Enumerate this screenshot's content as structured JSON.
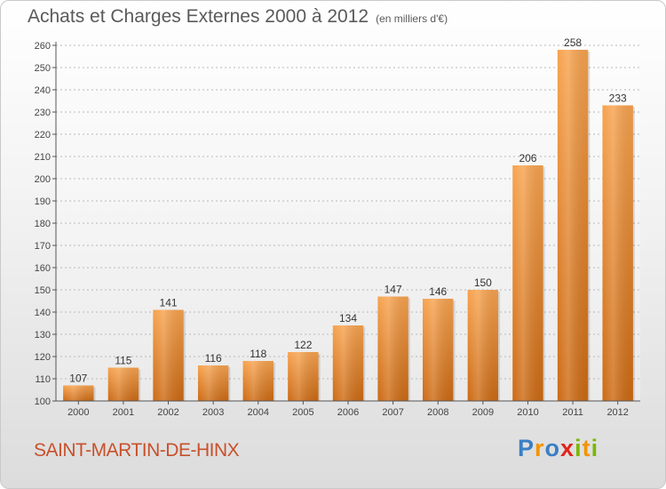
{
  "header": {
    "title": "Achats et Charges Externes 2000 à 2012",
    "unit": "(en milliers d'€)"
  },
  "footer": {
    "commune": "SAINT-MARTIN-DE-HINX",
    "logo": {
      "letters": [
        "P",
        "r",
        "o",
        "x",
        "i",
        "t",
        "i"
      ],
      "colors": [
        "#3b7fc4",
        "#f29400",
        "#3b7fc4",
        "#e2231a",
        "#7ab800",
        "#f29400",
        "#7ab800"
      ]
    }
  },
  "colors": {
    "bar_top": "#f7a34f",
    "bar_bottom": "#cc6a14",
    "commune_text": "#c8502a"
  },
  "chart_data": {
    "type": "bar",
    "categories": [
      "2000",
      "2001",
      "2002",
      "2003",
      "2004",
      "2005",
      "2006",
      "2007",
      "2008",
      "2009",
      "2010",
      "2011",
      "2012"
    ],
    "values": [
      107,
      115,
      141,
      116,
      118,
      122,
      134,
      147,
      146,
      150,
      206,
      258,
      233
    ],
    "ylim": [
      100,
      260
    ],
    "ytick_step": 10,
    "grid": true,
    "xlabel": "",
    "ylabel": ""
  }
}
